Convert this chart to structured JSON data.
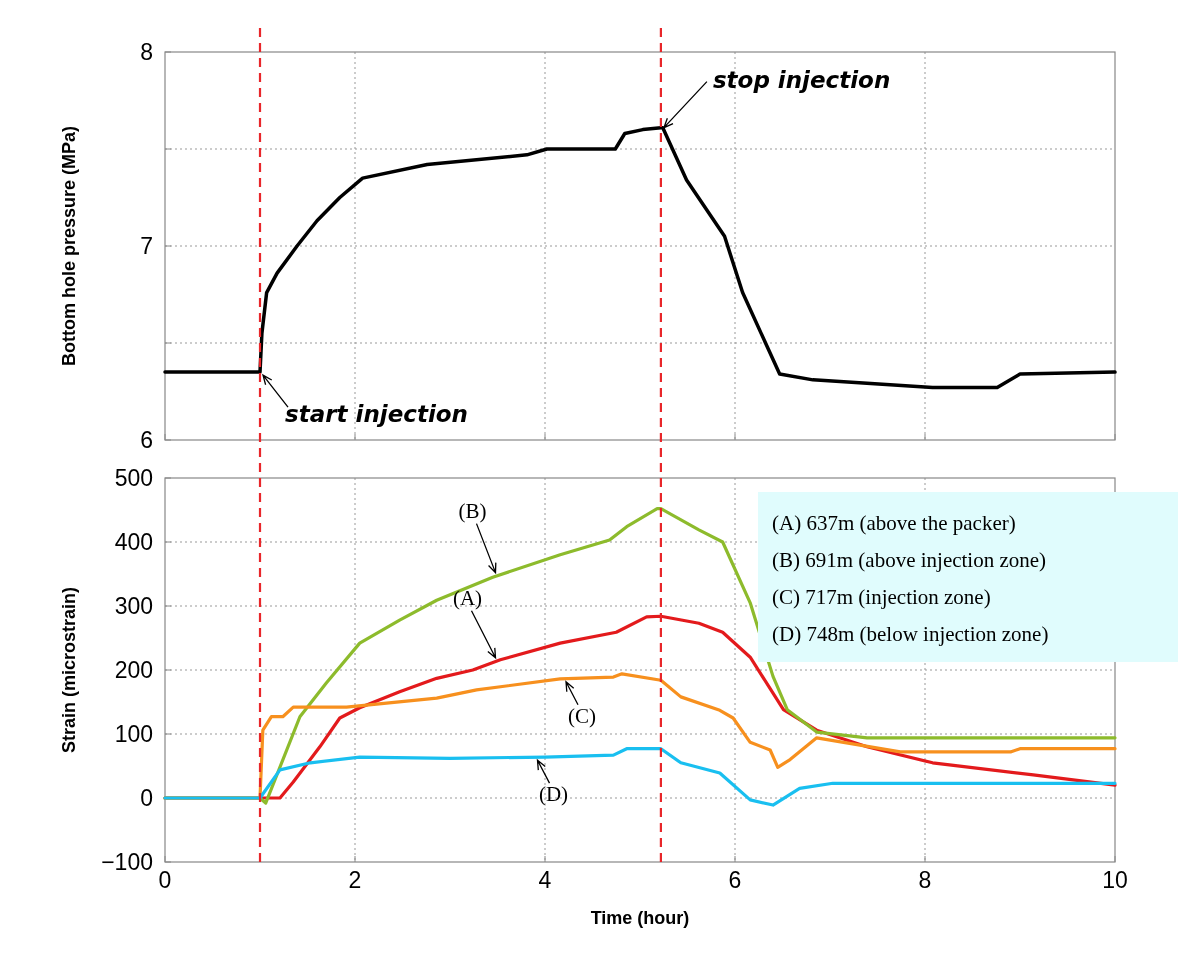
{
  "chart_data": [
    {
      "type": "line",
      "ylabel": "Bottom hole pressure (MPa)",
      "xlim": [
        0,
        10
      ],
      "xticks": [
        0,
        2,
        4,
        6,
        8,
        10
      ],
      "ylim": [
        6,
        8
      ],
      "yticks": [
        6,
        {
          "value": 6.5,
          "label": null
        },
        7,
        {
          "value": 7.5,
          "label": null
        },
        8
      ],
      "grid": true,
      "tick_labels": "y",
      "line_style": "solid",
      "series": [
        {
          "color": "#000000",
          "x": [
            0,
            1,
            1.02,
            1.07,
            1.18,
            1.39,
            1.6,
            1.84,
            2.08,
            2.76,
            3.81,
            4.02,
            4.74,
            4.84,
            5.03,
            5.22,
            5.24,
            5.49,
            5.89,
            6.08,
            6.47,
            6.82,
            8.08,
            8.76,
            9.0,
            10
          ],
          "values": [
            6.35,
            6.35,
            6.55,
            6.76,
            6.86,
            7.0,
            7.13,
            7.25,
            7.35,
            7.42,
            7.47,
            7.5,
            7.5,
            7.58,
            7.6,
            7.61,
            7.61,
            7.34,
            7.05,
            6.76,
            6.34,
            6.31,
            6.27,
            6.27,
            6.34,
            6.35
          ]
        }
      ],
      "ref_lines": [
        {
          "axis": "x",
          "value": 1,
          "color": "#e8262a",
          "line_style": "dashed"
        },
        {
          "axis": "x",
          "value": 5.22,
          "color": "#e8262a",
          "line_style": "dashed"
        }
      ],
      "annotations": [
        {
          "text": "start injection",
          "x": 1,
          "y": 6.35
        },
        {
          "text": "stop injection",
          "x": 5.22,
          "y": 7.61
        }
      ]
    },
    {
      "type": "line",
      "xlabel": "Time (hour)",
      "ylabel": "Strain (microstrain)",
      "xlim": [
        0,
        10
      ],
      "xticks": [
        0,
        2,
        4,
        6,
        8,
        10
      ],
      "ylim": [
        -100,
        500
      ],
      "yticks": [
        -100,
        0,
        100,
        200,
        300,
        400,
        500
      ],
      "grid": true,
      "line_style": "solid",
      "series": [
        {
          "name": "(A)",
          "color": "#e31a1c",
          "x": [
            0,
            1.02,
            1.21,
            1.35,
            1.63,
            1.84,
            2.05,
            2.47,
            2.86,
            3.24,
            3.53,
            4.16,
            4.75,
            5.07,
            5.22,
            5.62,
            5.87,
            6.16,
            6.51,
            6.86,
            7.39,
            8.08,
            9.14,
            10
          ],
          "values": [
            0,
            0,
            0,
            25,
            80,
            125,
            141,
            166,
            187,
            200,
            216,
            242,
            259,
            283,
            284,
            273,
            259,
            220,
            138,
            106,
            80,
            55,
            36,
            20
          ]
        },
        {
          "name": "(B)",
          "color": "#8dbb2c",
          "x": [
            0,
            1.0,
            1.06,
            1.42,
            1.7,
            2.05,
            2.47,
            2.86,
            3.45,
            4.16,
            4.68,
            4.86,
            5.18,
            5.22,
            5.62,
            5.87,
            6.16,
            6.4,
            6.55,
            6.86,
            7.39,
            10
          ],
          "values": [
            0,
            0,
            -8,
            127,
            180,
            242,
            278,
            309,
            345,
            380,
            403,
            424,
            452,
            452,
            419,
            400,
            305,
            190,
            138,
            103,
            94,
            94
          ]
        },
        {
          "name": "(C)",
          "color": "#f7901e",
          "x": [
            0,
            1.0,
            1.03,
            1.12,
            1.24,
            1.35,
            1.91,
            2.86,
            3.28,
            4.16,
            4.72,
            4.81,
            5.22,
            5.43,
            5.84,
            5.98,
            6.16,
            6.37,
            6.45,
            6.58,
            6.86,
            7.74,
            8.9,
            9.0,
            10
          ],
          "values": [
            0,
            0,
            106,
            127,
            127,
            142,
            142,
            156,
            169,
            186,
            189,
            194,
            184,
            158,
            137,
            125,
            87,
            75,
            48,
            60,
            94,
            72,
            72,
            77,
            77
          ]
        },
        {
          "name": "(D)",
          "color": "#19bff0",
          "x": [
            0,
            1.0,
            1.21,
            1.53,
            2.05,
            3.0,
            4.0,
            4.72,
            4.86,
            5.22,
            5.43,
            5.84,
            6.16,
            6.4,
            6.68,
            7.03,
            10
          ],
          "values": [
            0,
            0,
            44,
            55,
            64,
            62,
            64,
            67,
            77,
            77,
            55,
            39,
            -3,
            -11,
            15,
            23,
            23
          ]
        }
      ],
      "ref_lines": [
        {
          "axis": "x",
          "value": 1,
          "color": "#e8262a",
          "line_style": "dashed"
        },
        {
          "axis": "x",
          "value": 5.22,
          "color": "#e8262a",
          "line_style": "dashed"
        }
      ],
      "annotations": [
        "(A) 637m (above the packer)",
        "(B) 691m (above injection zone)",
        "(C) 717m (injection zone)",
        "(D) 748m (below injection zone)"
      ]
    }
  ]
}
